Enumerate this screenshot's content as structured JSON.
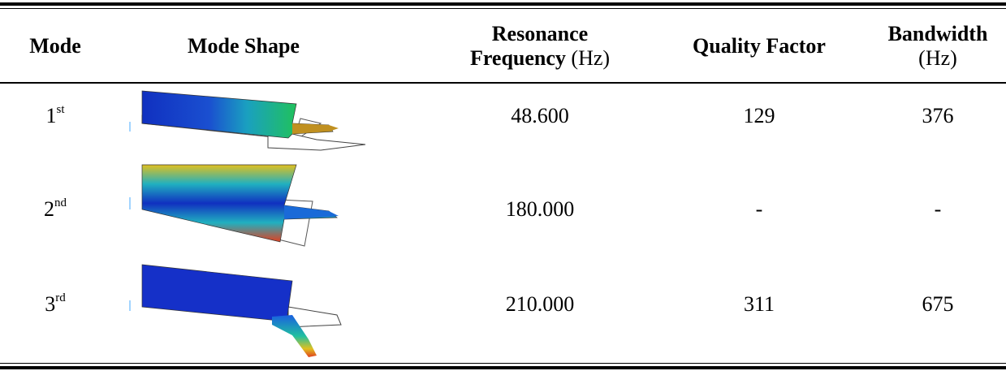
{
  "table": {
    "header": {
      "mode": "Mode",
      "shape": "Mode Shape",
      "frequency": {
        "title_line1": "Resonance",
        "title_line2": "Frequency",
        "unit": "(Hz)"
      },
      "quality": "Quality Factor",
      "bandwidth": {
        "title": "Bandwidth",
        "unit": "(Hz)"
      }
    },
    "rows": [
      {
        "mode": "1",
        "suffix": "st",
        "frequency": "48.600",
        "quality": "129",
        "bandwidth": "376"
      },
      {
        "mode": "2",
        "suffix": "nd",
        "frequency": "180.000",
        "quality": "-",
        "bandwidth": "-"
      },
      {
        "mode": "3",
        "suffix": "rd",
        "frequency": "210.000",
        "quality": "311",
        "bandwidth": "675"
      }
    ]
  }
}
